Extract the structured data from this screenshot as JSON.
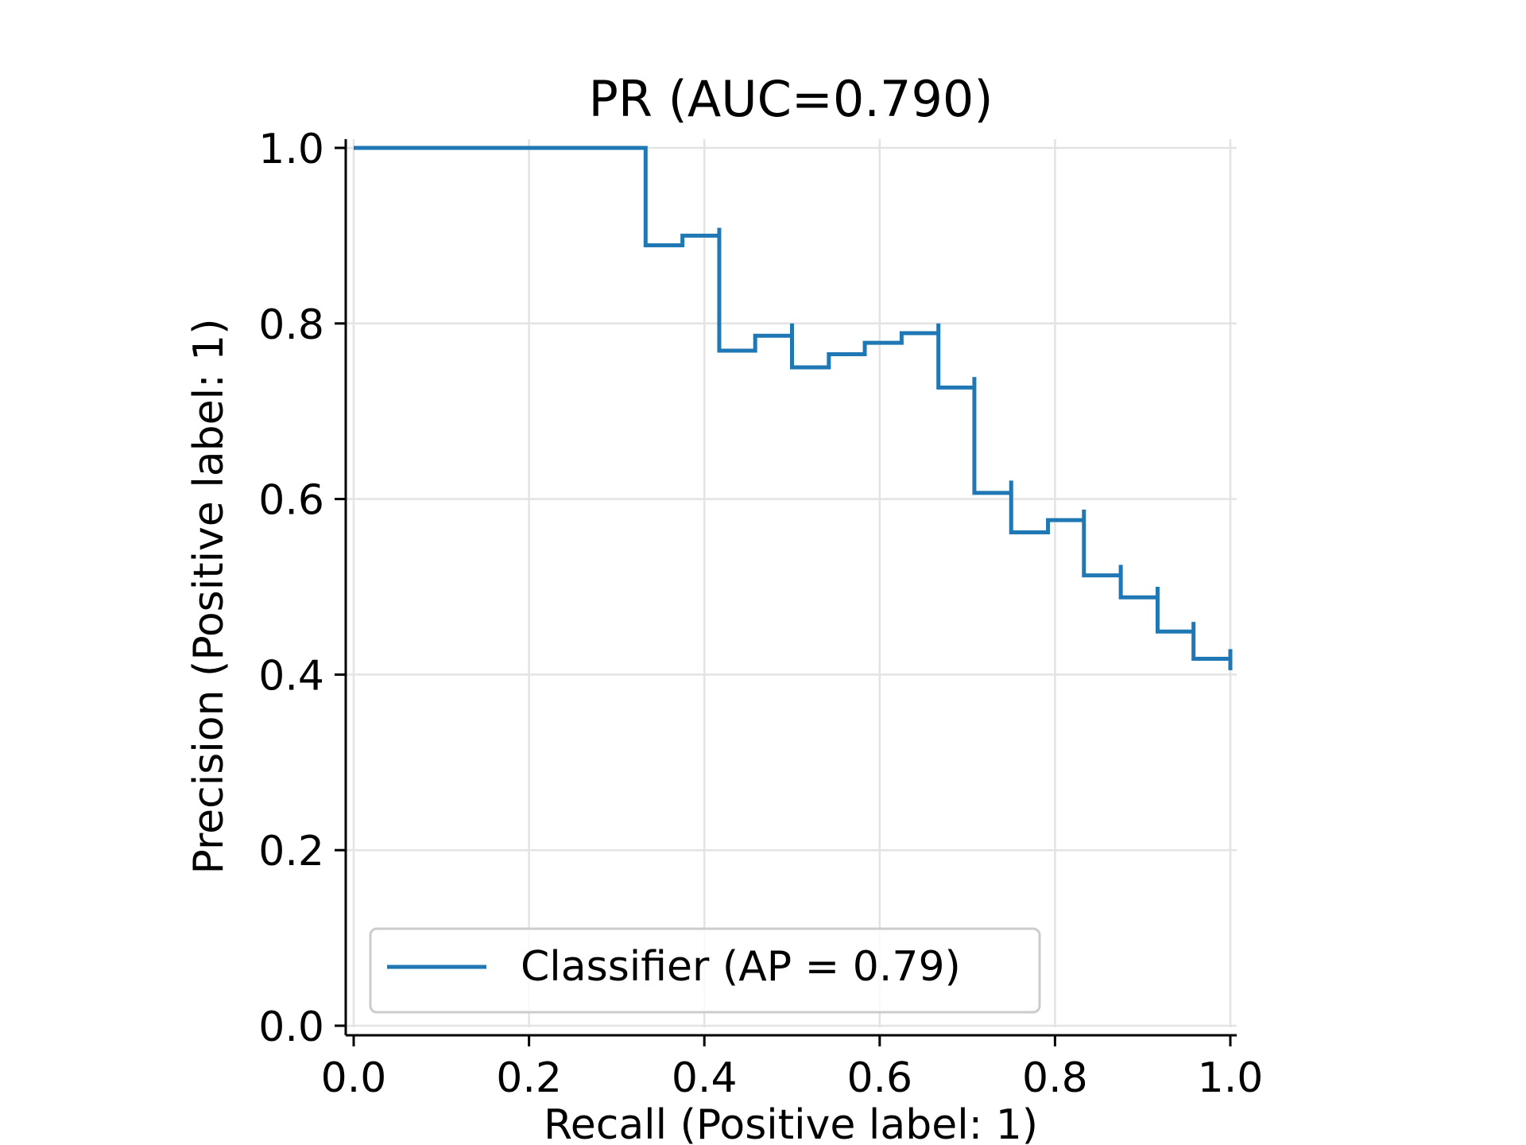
{
  "chart_data": {
    "type": "line",
    "title": "PR (AUC=0.790)",
    "xlabel": "Recall (Positive label: 1)",
    "ylabel": "Precision (Positive label: 1)",
    "xlim": [
      0.0,
      1.0
    ],
    "ylim": [
      0.0,
      1.0
    ],
    "x_ticks": [
      "0.0",
      "0.2",
      "0.4",
      "0.6",
      "0.8",
      "1.0"
    ],
    "y_ticks": [
      "0.0",
      "0.2",
      "0.4",
      "0.6",
      "0.8",
      "1.0"
    ],
    "grid": true,
    "legend_position": "lower-left",
    "series": [
      {
        "name": "Classifier (AP = 0.79)",
        "color": "#1f77b4",
        "drawstyle": "steps-post",
        "recall": [
          0.0,
          0.333,
          0.333,
          0.375,
          0.417,
          0.417,
          0.458,
          0.5,
          0.5,
          0.542,
          0.583,
          0.625,
          0.667,
          0.667,
          0.708,
          0.708,
          0.75,
          0.75,
          0.792,
          0.833,
          0.833,
          0.875,
          0.875,
          0.917,
          0.917,
          0.958,
          0.958,
          1.0,
          1.0
        ],
        "precision": [
          1.0,
          1.0,
          0.889,
          0.9,
          0.909,
          0.769,
          0.786,
          0.8,
          0.75,
          0.765,
          0.778,
          0.789,
          0.8,
          0.727,
          0.739,
          0.607,
          0.621,
          0.562,
          0.576,
          0.588,
          0.513,
          0.525,
          0.488,
          0.5,
          0.449,
          0.46,
          0.418,
          0.429,
          0.405
        ]
      }
    ]
  }
}
